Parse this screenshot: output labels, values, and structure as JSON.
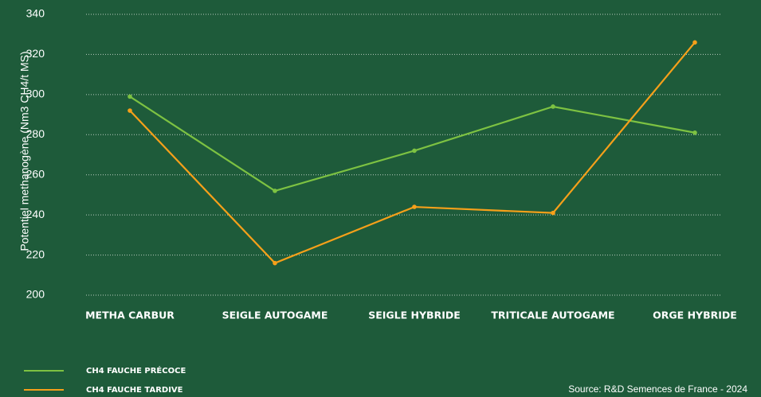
{
  "chart_data": {
    "type": "line",
    "y_label": "Potentiel methanogène (Nm3 CH4/t MS)",
    "categories": [
      "METHA CARBUR",
      "SEIGLE AUTOGAME",
      "SEIGLE HYBRIDE",
      "TRITICALE AUTOGAME",
      "ORGE HYBRIDE"
    ],
    "series": [
      {
        "name": "CH4 FAUCHE PRÉCOCE",
        "color": "#7dc242",
        "values": [
          299,
          252,
          272,
          294,
          281
        ]
      },
      {
        "name": "CH4 FAUCHE TARDIVE",
        "color": "#f5a01a",
        "values": [
          292,
          216,
          244,
          241,
          326
        ]
      }
    ],
    "ylim": [
      200,
      340
    ],
    "yticks": [
      200,
      220,
      240,
      260,
      280,
      300,
      320,
      340
    ],
    "grid": true,
    "source": "Source: R&D Semences de France - 2024"
  }
}
